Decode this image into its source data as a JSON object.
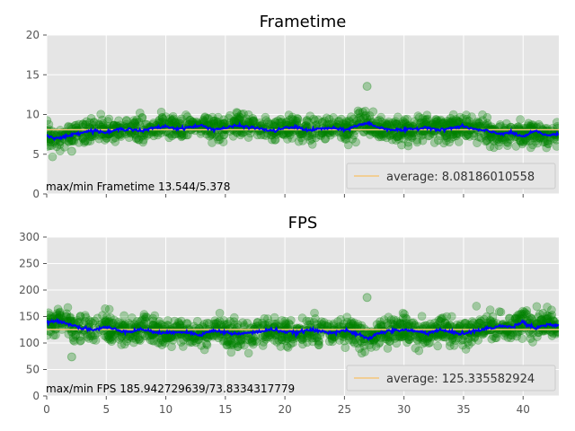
{
  "chart_data": [
    {
      "type": "scatter",
      "title": "Frametime",
      "xlim": [
        0,
        43
      ],
      "ylim": [
        0,
        20
      ],
      "xticks": [
        0,
        5,
        10,
        15,
        20,
        25,
        30,
        35,
        40
      ],
      "yticks": [
        0,
        5,
        10,
        15,
        20
      ],
      "xtick_labels_visible": false,
      "grid": true,
      "annotation": "max/min Frametime 13.544/5.378",
      "legend": {
        "placement": "bottom-right",
        "label": "average: 8.08186010558"
      },
      "average": 8.08186010558,
      "max": 13.544,
      "min": 5.378,
      "series": [
        {
          "kind": "scatter",
          "color": "#008000",
          "band_center": 8.1,
          "band_halfwidth": 1.3
        },
        {
          "kind": "line",
          "color": "#0000ff",
          "x": [
            0,
            1,
            2,
            3,
            4,
            5,
            6,
            7,
            8,
            9,
            10,
            11,
            12,
            13,
            14,
            15,
            16,
            17,
            18,
            19,
            20,
            21,
            22,
            23,
            24,
            25,
            26,
            27,
            28,
            29,
            30,
            31,
            32,
            33,
            34,
            35,
            36,
            37,
            38,
            39,
            40,
            41,
            42,
            43
          ],
          "y": [
            7.3,
            7.0,
            7.4,
            7.8,
            8.0,
            7.7,
            8.1,
            8.2,
            7.9,
            8.3,
            8.5,
            8.2,
            8.4,
            8.6,
            8.1,
            8.3,
            8.6,
            8.4,
            8.2,
            7.9,
            8.3,
            8.4,
            8.0,
            8.2,
            8.3,
            8.0,
            8.6,
            8.9,
            8.3,
            8.1,
            8.0,
            8.2,
            8.4,
            8.0,
            8.3,
            8.5,
            8.1,
            7.9,
            7.6,
            7.7,
            7.2,
            7.9,
            7.4,
            7.5
          ]
        },
        {
          "kind": "line",
          "color": "#f5c67b",
          "y_const": 8.08186010558
        }
      ]
    },
    {
      "type": "scatter",
      "title": "FPS",
      "xlim": [
        0,
        43
      ],
      "ylim": [
        0,
        300
      ],
      "xticks": [
        0,
        5,
        10,
        15,
        20,
        25,
        30,
        35,
        40
      ],
      "yticks": [
        0,
        50,
        100,
        150,
        200,
        250,
        300
      ],
      "xtick_labels_visible": true,
      "grid": true,
      "annotation": "max/min FPS 185.942729639/73.8334317779",
      "legend": {
        "placement": "bottom-right",
        "label": "average: 125.335582924"
      },
      "average": 125.335582924,
      "max": 185.942729639,
      "min": 73.8334317779,
      "series": [
        {
          "kind": "scatter",
          "color": "#008000",
          "band_center": 125,
          "band_halfwidth": 22
        },
        {
          "kind": "line",
          "color": "#0000ff",
          "x": [
            0,
            1,
            2,
            3,
            4,
            5,
            6,
            7,
            8,
            9,
            10,
            11,
            12,
            13,
            14,
            15,
            16,
            17,
            18,
            19,
            20,
            21,
            22,
            23,
            24,
            25,
            26,
            27,
            28,
            29,
            30,
            31,
            32,
            33,
            34,
            35,
            36,
            37,
            38,
            39,
            40,
            41,
            42,
            43
          ],
          "y": [
            138,
            142,
            135,
            128,
            125,
            130,
            124,
            122,
            126,
            121,
            118,
            122,
            119,
            116,
            124,
            120,
            117,
            119,
            122,
            126,
            121,
            119,
            125,
            122,
            120,
            124,
            117,
            108,
            120,
            123,
            125,
            122,
            119,
            125,
            120,
            118,
            123,
            127,
            132,
            130,
            140,
            128,
            135,
            133
          ]
        },
        {
          "kind": "line",
          "color": "#f5c67b",
          "y_const": 125.335582924
        }
      ]
    }
  ]
}
